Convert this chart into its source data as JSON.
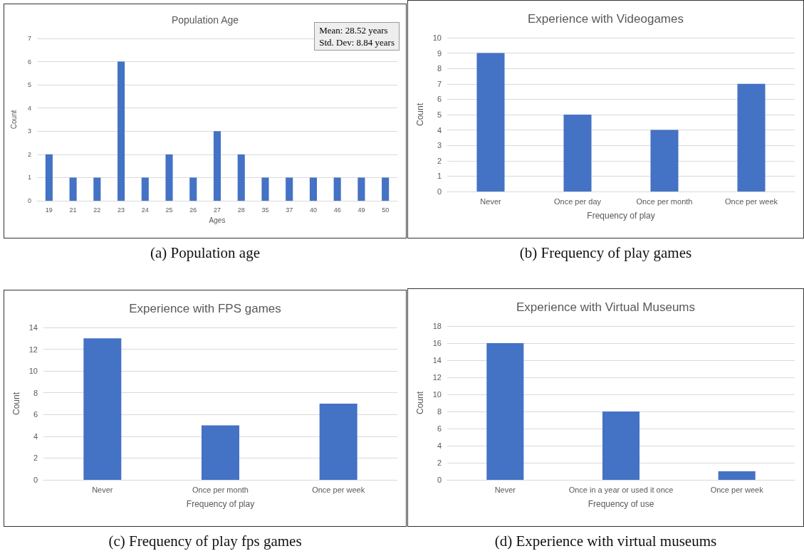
{
  "chart_data": [
    {
      "type": "bar",
      "title": "Population Age",
      "xlabel": "Ages",
      "ylabel": "Count",
      "categories": [
        "19",
        "21",
        "22",
        "23",
        "24",
        "25",
        "26",
        "27",
        "28",
        "35",
        "37",
        "40",
        "46",
        "49",
        "50"
      ],
      "values": [
        2,
        1,
        1,
        6,
        1,
        2,
        1,
        3,
        2,
        1,
        1,
        1,
        1,
        1,
        1
      ],
      "color": "#4472c4",
      "ylim": [
        0,
        7
      ],
      "yticks": [
        0,
        1,
        2,
        3,
        4,
        5,
        6,
        7
      ],
      "grid": "y",
      "annotations": [
        "Mean: 28.52 years",
        "Std. Dev: 8.84 years",
        "(a)  Population age"
      ]
    },
    {
      "type": "bar",
      "title": "Experience with Videogames",
      "xlabel": "Frequency of play",
      "ylabel": "Count",
      "categories": [
        "Never",
        "Once per day",
        "Once per month",
        "Once per week"
      ],
      "values": [
        9,
        5,
        4,
        7
      ],
      "color": "#4472c4",
      "ylim": [
        0,
        10
      ],
      "yticks": [
        0,
        1,
        2,
        3,
        4,
        5,
        6,
        7,
        8,
        9,
        10
      ],
      "grid": "y",
      "annotations": [
        "(b)  Frequency of play games"
      ]
    },
    {
      "type": "bar",
      "title": "Experience with FPS games",
      "xlabel": "Frequency of play",
      "ylabel": "Count",
      "categories": [
        "Never",
        "Once per month",
        "Once per week"
      ],
      "values": [
        13,
        5,
        7
      ],
      "color": "#4472c4",
      "ylim": [
        0,
        14
      ],
      "yticks": [
        0,
        2,
        4,
        6,
        8,
        10,
        12,
        14
      ],
      "grid": "y",
      "annotations": [
        "(c)  Frequency of play fps games"
      ]
    },
    {
      "type": "bar",
      "title": "Experience with Virtual Museums",
      "xlabel": "Frequency of use",
      "ylabel": "Count",
      "categories": [
        "Never",
        "Once in a year or used it once",
        "Once per week"
      ],
      "values": [
        16,
        8,
        1
      ],
      "color": "#4472c4",
      "ylim": [
        0,
        18
      ],
      "yticks": [
        0,
        2,
        4,
        6,
        8,
        10,
        12,
        14,
        16,
        18
      ],
      "grid": "y",
      "annotations": [
        "(d)  Experience with virtual museums"
      ]
    }
  ]
}
